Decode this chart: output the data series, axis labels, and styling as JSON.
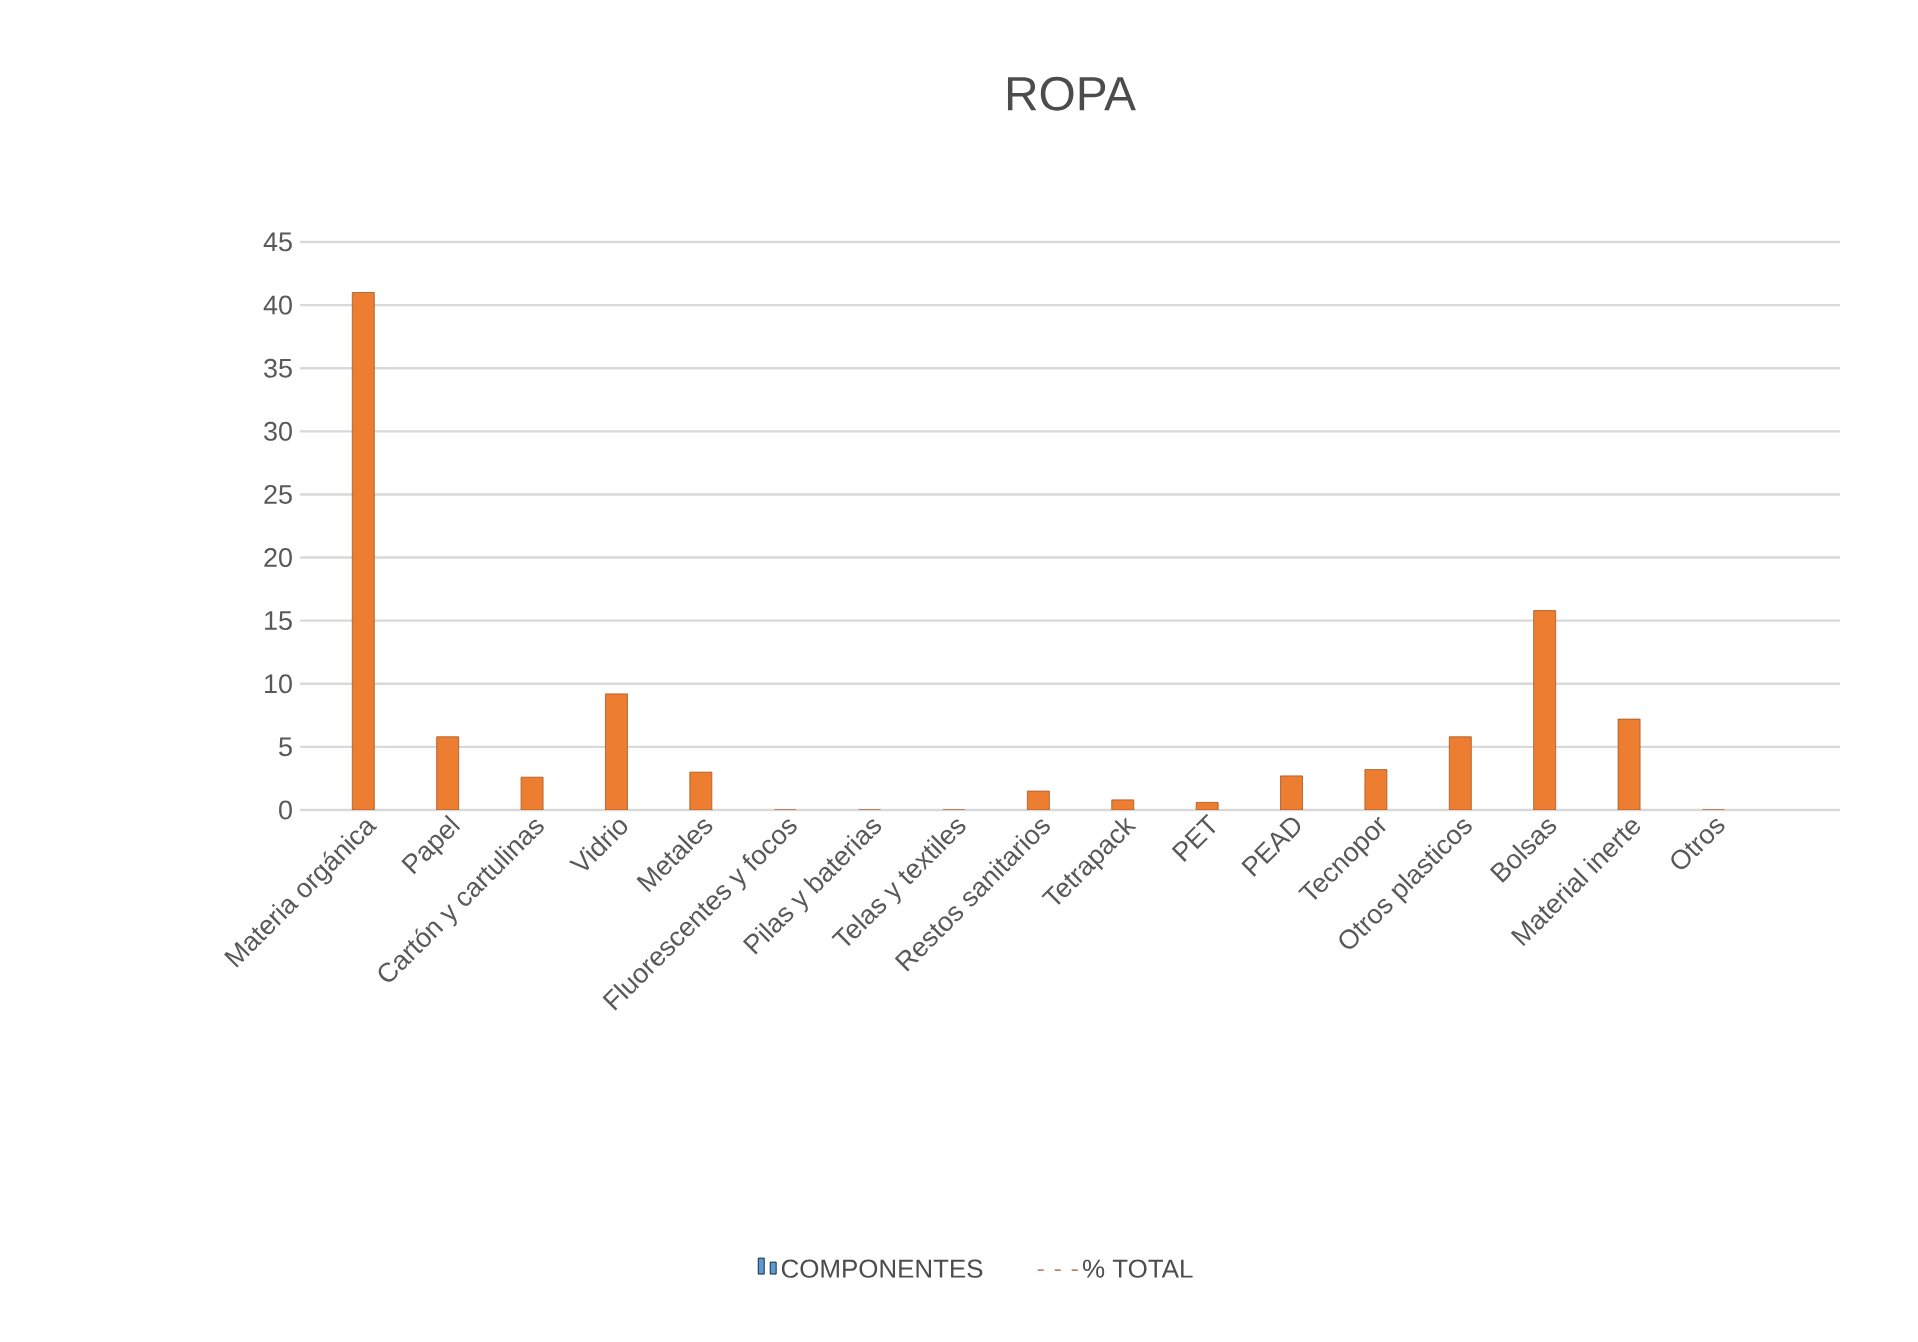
{
  "chart_data": {
    "type": "bar",
    "title": "ROPA",
    "categories": [
      "Materia orgánica",
      "Papel",
      "Cartón y cartulinas",
      "Vidrio",
      "Metales",
      "Fluorescentes y focos",
      "Pilas y baterias",
      "Telas y textiles",
      "Restos sanitarios",
      "Tetrapack",
      "PET",
      "PEAD",
      "Tecnopor",
      "Otros plasticos",
      "Bolsas",
      "Material inerte",
      "Otros"
    ],
    "series": [
      {
        "name": "COMPONENTES",
        "color": "#5b9bd5",
        "values": [
          null,
          null,
          null,
          null,
          null,
          null,
          null,
          null,
          null,
          null,
          null,
          null,
          null,
          null,
          null,
          null,
          null
        ]
      },
      {
        "name": "% TOTAL",
        "color": "#ed7d31",
        "values": [
          41,
          5.8,
          2.6,
          9.2,
          3.0,
          0,
          0,
          0,
          1.5,
          0.8,
          0.6,
          2.7,
          3.2,
          5.8,
          15.8,
          7.2,
          0
        ]
      }
    ],
    "ylim": [
      0,
      45
    ],
    "yticks": [
      0,
      5,
      10,
      15,
      20,
      25,
      30,
      35,
      40,
      45
    ],
    "grid": "y",
    "legend": "bottom"
  }
}
